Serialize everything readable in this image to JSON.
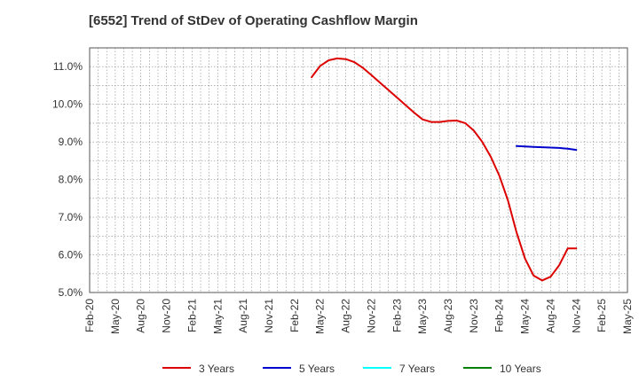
{
  "colors": {
    "3_years": "#dd0000",
    "5_years": "#0000cc",
    "7_years": "#00ffff",
    "10_years": "#008000",
    "grid": "#888888",
    "axis": "#555555"
  },
  "chart_data": {
    "type": "line",
    "title": "[6552]  Trend of StDev of Operating Cashflow Margin",
    "xlabel": "",
    "ylabel": "",
    "ylim": [
      5.0,
      11.5
    ],
    "y_ticks": [
      5.0,
      6.0,
      7.0,
      8.0,
      9.0,
      10.0,
      11.0
    ],
    "y_tick_labels": [
      "5.0%",
      "6.0%",
      "7.0%",
      "8.0%",
      "9.0%",
      "10.0%",
      "11.0%"
    ],
    "x_range": [
      "2020-02",
      "2025-05"
    ],
    "x_ticks": [
      "Feb-20",
      "May-20",
      "Aug-20",
      "Nov-20",
      "Feb-21",
      "May-21",
      "Aug-21",
      "Nov-21",
      "Feb-22",
      "May-22",
      "Aug-22",
      "Nov-22",
      "Feb-23",
      "May-23",
      "Aug-23",
      "Nov-23",
      "Feb-24",
      "May-24",
      "Aug-24",
      "Nov-24",
      "Feb-25",
      "May-25"
    ],
    "grid": true,
    "legend_position": "bottom",
    "series": [
      {
        "name": "3 Years",
        "color": "#dd0000",
        "x": [
          "2022-04",
          "2022-05",
          "2022-06",
          "2022-07",
          "2022-08",
          "2022-09",
          "2022-10",
          "2022-11",
          "2022-12",
          "2023-01",
          "2023-02",
          "2023-03",
          "2023-04",
          "2023-05",
          "2023-06",
          "2023-07",
          "2023-08",
          "2023-09",
          "2023-10",
          "2023-11",
          "2023-12",
          "2024-01",
          "2024-02",
          "2024-03",
          "2024-04",
          "2024-05",
          "2024-06",
          "2024-07",
          "2024-08",
          "2024-09",
          "2024-10",
          "2024-11"
        ],
        "y": [
          10.72,
          11.02,
          11.17,
          11.22,
          11.2,
          11.12,
          10.97,
          10.78,
          10.58,
          10.38,
          10.18,
          9.98,
          9.78,
          9.6,
          9.53,
          9.53,
          9.56,
          9.57,
          9.5,
          9.3,
          9.0,
          8.6,
          8.1,
          7.45,
          6.6,
          5.9,
          5.45,
          5.32,
          5.42,
          5.72,
          6.17,
          6.17
        ]
      },
      {
        "name": "5 Years",
        "color": "#0000cc",
        "x": [
          "2024-04",
          "2024-05",
          "2024-06",
          "2024-07",
          "2024-08",
          "2024-09",
          "2024-10",
          "2024-11"
        ],
        "y": [
          8.89,
          8.88,
          8.87,
          8.86,
          8.85,
          8.84,
          8.82,
          8.79
        ]
      },
      {
        "name": "7 Years",
        "color": "#00ffff",
        "x": [],
        "y": []
      },
      {
        "name": "10 Years",
        "color": "#008000",
        "x": [],
        "y": []
      }
    ]
  }
}
